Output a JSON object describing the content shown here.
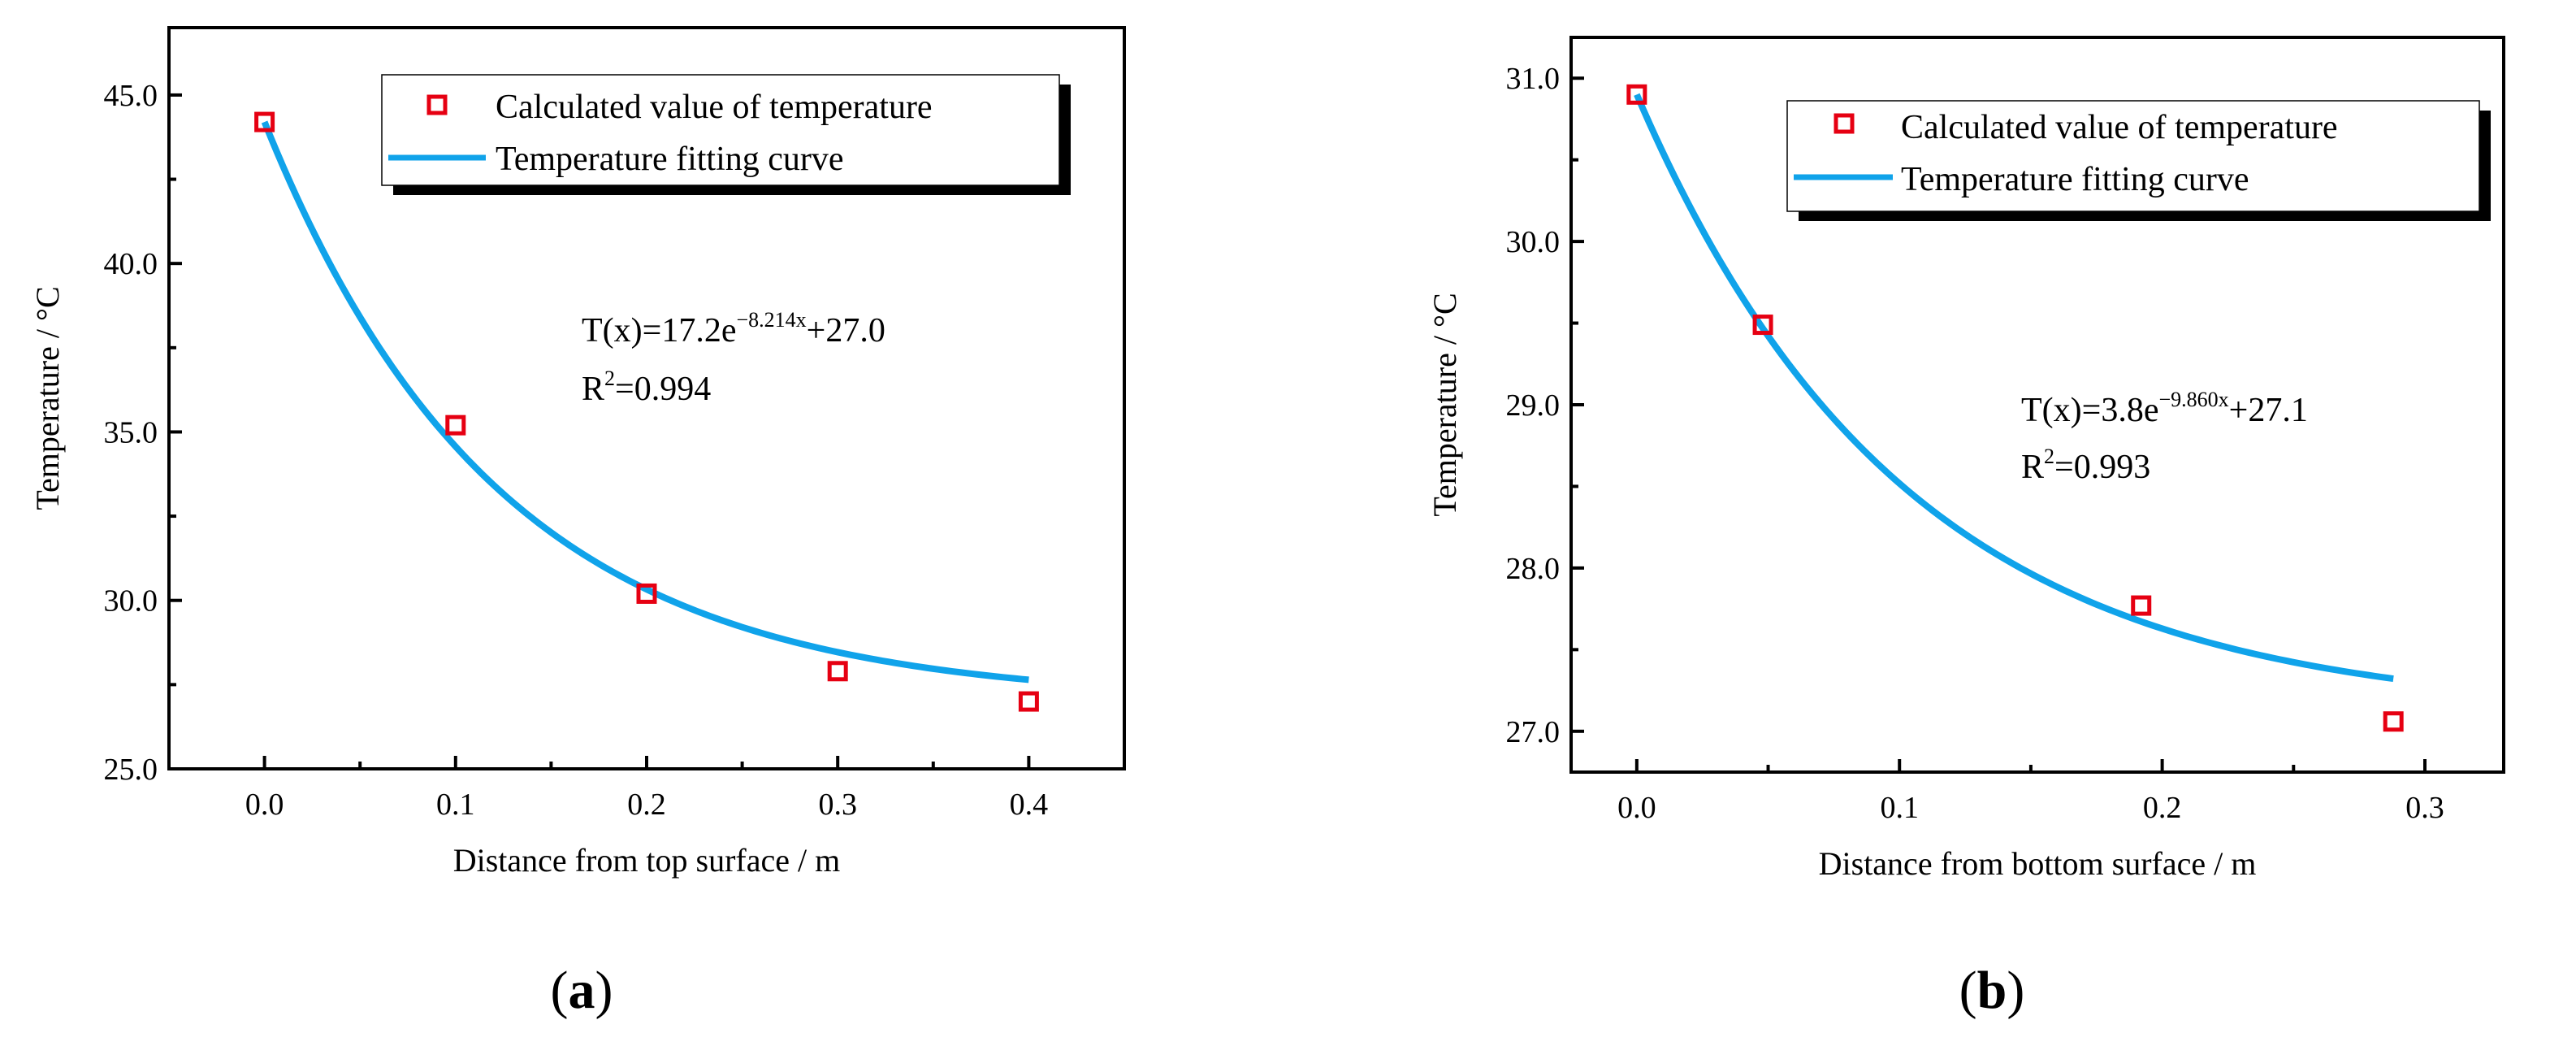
{
  "colors": {
    "marker": "#e60012",
    "curve": "#10a3ea",
    "axis": "#000000",
    "legend_shadow": "#000000"
  },
  "chart_data": [
    {
      "type": "scatter",
      "panel_label_open": "(",
      "panel_label": "a",
      "panel_label_close": ")",
      "xlabel": "Distance from top surface / m",
      "ylabel": "Temperature / °C",
      "xlim": [
        -0.05,
        0.45
      ],
      "ylim": [
        25.0,
        47.0
      ],
      "xticks": [
        0.0,
        0.1,
        0.2,
        0.3,
        0.4
      ],
      "xtick_labels": [
        "0.0",
        "0.1",
        "0.2",
        "0.3",
        "0.4"
      ],
      "yticks": [
        25.0,
        30.0,
        35.0,
        40.0,
        45.0
      ],
      "ytick_labels": [
        "25.0",
        "30.0",
        "35.0",
        "40.0",
        "45.0"
      ],
      "legend": {
        "entries": [
          "Calculated value of temperature",
          "Temperature fitting curve"
        ],
        "placement": "top-right"
      },
      "series": [
        {
          "name": "Calculated value of temperature",
          "kind": "markers",
          "x": [
            0.0,
            0.1,
            0.2,
            0.3,
            0.4
          ],
          "y": [
            44.2,
            35.2,
            30.2,
            27.9,
            27.0
          ]
        },
        {
          "name": "Temperature fitting curve",
          "kind": "curve",
          "formula": {
            "a": 17.2,
            "b": 8.214,
            "c": 27.0
          },
          "x_range": [
            0.0,
            0.4
          ]
        }
      ],
      "equation": {
        "lhs": "T(x)=17.2e",
        "exponent": "−8.214x",
        "rhs": "+27.0",
        "r2_lhs": "R",
        "r2_sup": "2",
        "r2_rhs": "=0.994"
      }
    },
    {
      "type": "scatter",
      "panel_label_open": "(",
      "panel_label": "b",
      "panel_label_close": ")",
      "xlabel": "Distance from bottom surface / m",
      "ylabel": "Temperature / °C",
      "xlim": [
        -0.025,
        0.33
      ],
      "ylim": [
        26.75,
        31.25
      ],
      "xticks": [
        0.0,
        0.1,
        0.2,
        0.3
      ],
      "xtick_labels": [
        "0.0",
        "0.1",
        "0.2",
        "0.3"
      ],
      "yticks": [
        27.0,
        28.0,
        29.0,
        30.0,
        31.0
      ],
      "ytick_labels": [
        "27.0",
        "28.0",
        "29.0",
        "30.0",
        "31.0"
      ],
      "legend": {
        "entries": [
          "Calculated value of temperature",
          "Temperature fitting curve"
        ],
        "placement": "top-right"
      },
      "series": [
        {
          "name": "Calculated value of temperature",
          "kind": "markers",
          "x": [
            0.0,
            0.048,
            0.192,
            0.288
          ],
          "y": [
            30.9,
            29.49,
            27.77,
            27.06
          ]
        },
        {
          "name": "Temperature fitting curve",
          "kind": "curve",
          "formula": {
            "a": 3.8,
            "b": 9.86,
            "c": 27.1
          },
          "x_range": [
            0.0,
            0.288
          ]
        }
      ],
      "equation": {
        "lhs": "T(x)=3.8e",
        "exponent": "−9.860x",
        "rhs": "+27.1",
        "r2_lhs": "R",
        "r2_sup": "2",
        "r2_rhs": "=0.993"
      }
    }
  ]
}
